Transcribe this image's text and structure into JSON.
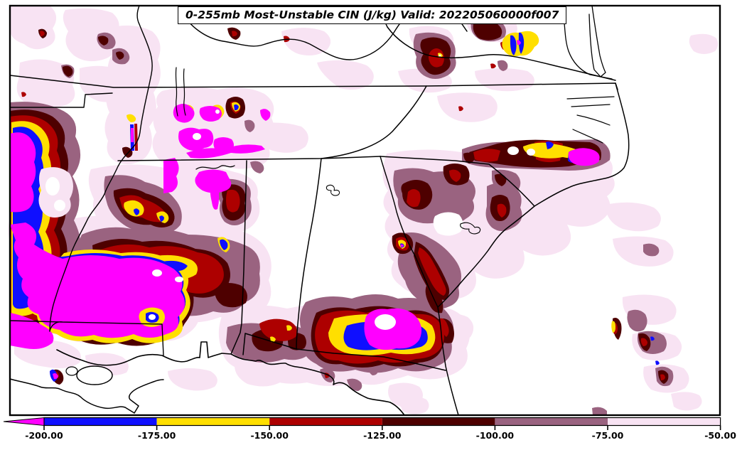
{
  "title": "0-255mb Most-Unstable CIN (J/kg) Valid: 202205060000f007",
  "map": {
    "kind": "filled-contour weather map",
    "field": "Most-Unstable CIN",
    "layer": "0-255mb",
    "region": "Southeastern United States"
  },
  "colorbar": {
    "units": "J/kg",
    "tick_labels": [
      "-200.00",
      "-175.00",
      "-150.00",
      "-125.00",
      "-100.00",
      "-75.00",
      "-50.00"
    ],
    "segments": [
      {
        "range": "below -200",
        "color_key": "magenta",
        "style": "left-arrow"
      },
      {
        "range": "-200 to -175",
        "color_key": "blue"
      },
      {
        "range": "-175 to -150",
        "color_key": "yellow"
      },
      {
        "range": "-150 to -125",
        "color_key": "red"
      },
      {
        "range": "-125 to -100",
        "color_key": "dark_maroon"
      },
      {
        "range": "-100 to -75",
        "color_key": "mauve"
      },
      {
        "range": "-75 to -50",
        "color_key": "pale_pink"
      }
    ]
  },
  "colors": {
    "magenta": "#ff00ff",
    "blue": "#0f0fff",
    "yellow": "#ffdf00",
    "red": "#ad0000",
    "dark_maroon": "#4e0000",
    "mauve": "#9a6380",
    "pale_pink": "#f8e3f3",
    "land": "#ffffff",
    "line": "#000000"
  }
}
